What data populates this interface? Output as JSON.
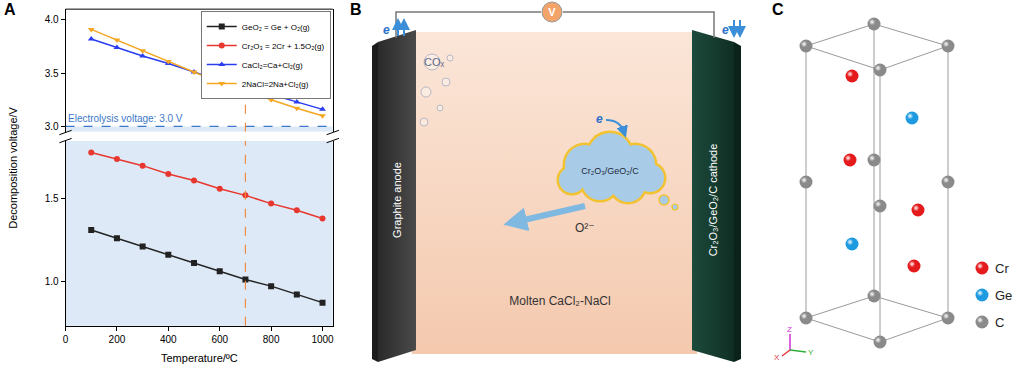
{
  "panel_labels": [
    "A",
    "B",
    "C"
  ],
  "chart_data": {
    "type": "line",
    "xlabel": "Temperature/ºC",
    "ylabel": "Decomposition voltage/V",
    "x": [
      100,
      200,
      300,
      400,
      500,
      600,
      700,
      800,
      900,
      1000
    ],
    "xlim": [
      0,
      1040
    ],
    "xticks": [
      0,
      200,
      400,
      600,
      800,
      1000
    ],
    "ylim": [
      0.73,
      1.85
    ],
    "yticks": [
      {
        "value": 1,
        "label": "1.0"
      },
      1.5
    ],
    "y2lim": [
      2.95,
      4.1
    ],
    "y2ticks": [
      {
        "value": 3,
        "label": "3.0"
      },
      3.5,
      {
        "value": 4,
        "label": "4.0"
      }
    ],
    "grid": false,
    "legend": "upper right",
    "series": [
      {
        "name": "GeO₂ = Ge + O₂(g)",
        "color": "#222222",
        "marker": "square",
        "line_style": "solid",
        "values": [
          1.31,
          1.26,
          1.21,
          1.16,
          1.11,
          1.06,
          1.01,
          0.97,
          0.92,
          0.87
        ]
      },
      {
        "name": "Cr₂O₃ = 2Cr + 1.5O₂(g)",
        "color": "#e8372f",
        "marker": "circle",
        "line_style": "solid",
        "values": [
          1.78,
          1.74,
          1.7,
          1.65,
          1.61,
          1.56,
          1.52,
          1.47,
          1.43,
          1.38
        ]
      },
      {
        "name": "CaCl₂=Ca+Cl₂(g)",
        "color": "#2b3df0",
        "marker": "triangle-up",
        "line_style": "solid",
        "axis": "y2",
        "values": [
          3.82,
          3.74,
          3.66,
          3.59,
          3.51,
          3.43,
          3.37,
          3.3,
          3.23,
          3.16
        ]
      },
      {
        "name": "2NaCl=2Na+Cl₂(g)",
        "color": "#f5a623",
        "marker": "triangle-down",
        "line_style": "solid",
        "axis": "y2",
        "values": [
          3.91,
          3.81,
          3.71,
          3.61,
          3.51,
          3.41,
          3.34,
          3.25,
          3.17,
          3.1
        ]
      }
    ],
    "reference_lines": [
      {
        "axis": "y2",
        "value": 3.0,
        "label": "Electrolysis voltage: 3.0 V",
        "color": "#3c78c8",
        "line_style": "dashed"
      },
      {
        "axis": "x",
        "value": 700,
        "color": "#f08a3c",
        "line_style": "dashed"
      }
    ]
  },
  "schematic": {
    "voltmeter": "V",
    "electron": "e",
    "anode": "Graphite anode",
    "cathode": "Cr₂O₃/GeO₂/C cathode",
    "gas": "COₓ",
    "particle": "Cr₂O₃/GeO₂/C",
    "ion": "O²⁻",
    "electrolyte": "Molten CaCl₂-NaCl"
  },
  "crystal": {
    "legend": [
      {
        "label": "Cr",
        "color": "#e41a1c"
      },
      {
        "label": "Ge",
        "color": "#1e9be0"
      },
      {
        "label": "C",
        "color": "#8a8a8a"
      }
    ],
    "axes": {
      "z": "Z",
      "x": "X",
      "y": "Y"
    }
  }
}
